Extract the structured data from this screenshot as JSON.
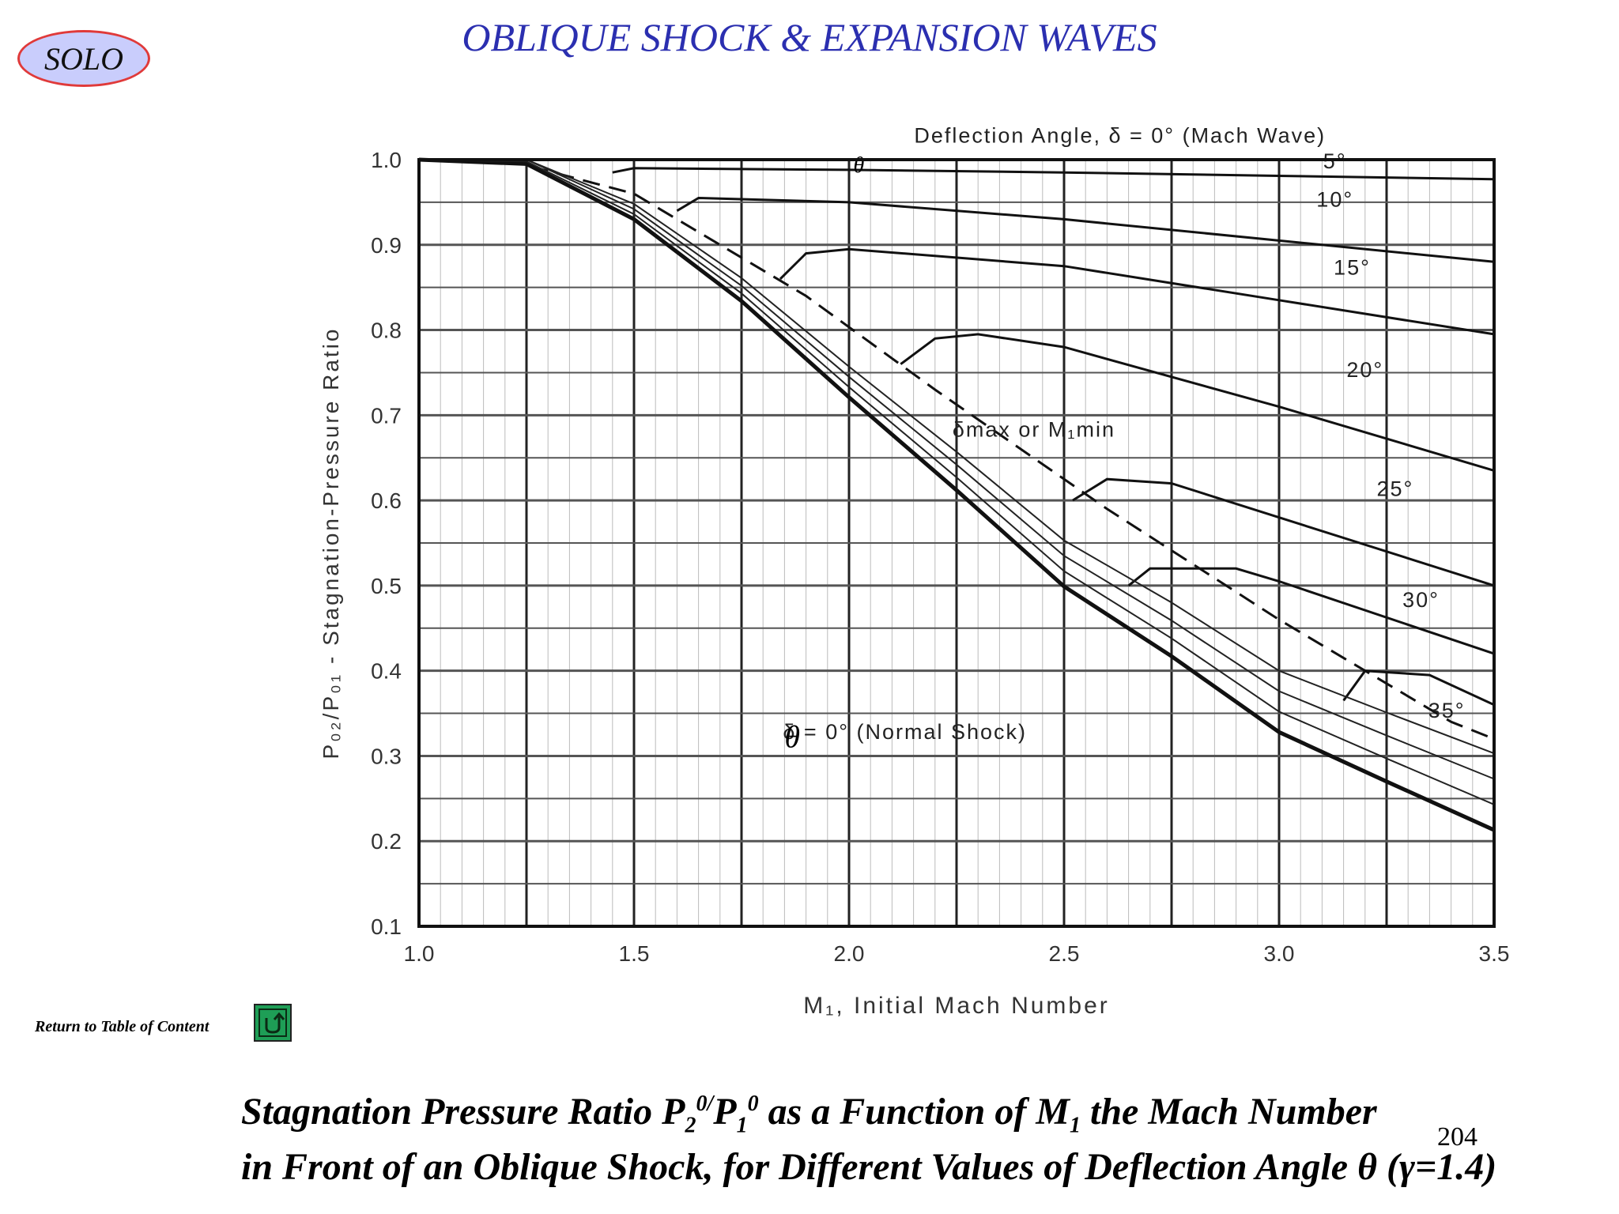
{
  "slide": {
    "badge": "SOLO",
    "title": "OBLIQUE SHOCK & EXPANSION WAVES",
    "toc_link": "Return to Table of Content",
    "return_icon": "return-arrow-icon",
    "page_number": "204",
    "caption": {
      "line1": {
        "p1": "Stagnation Pressure Ratio P",
        "sub1": "2",
        "sup1": "0/",
        "p2": "P",
        "sub2": "1",
        "sup2": "0",
        "p3": " as a Function of M",
        "sub3": "1",
        "p4": " the Mach Number"
      },
      "line2": "in Front of an Oblique Shock, for Different Values of Deflection Angle θ (γ=1.4)"
    }
  },
  "chart_data": {
    "type": "line",
    "xlabel": "M₁, Initial Mach Number",
    "ylabel": "P₀₂/P₀₁ - Stagnation-Pressure Ratio",
    "xlim": [
      1.0,
      3.5
    ],
    "ylim": [
      0.1,
      1.0
    ],
    "xticks": [
      "1.0",
      "1.5",
      "2.0",
      "2.5",
      "3.0",
      "3.5"
    ],
    "yticks": [
      "0.1",
      "0.2",
      "0.3",
      "0.4",
      "0.5",
      "0.6",
      "0.7",
      "0.8",
      "0.9",
      "1.0"
    ],
    "grid": true,
    "theta_marks": [
      "θ",
      "θ"
    ],
    "series": [
      {
        "name": "δ = 0° (Mach Wave)",
        "label": "Deflection Angle, δ = 0° (Mach Wave)",
        "x": [
          1.0,
          3.5
        ],
        "y": [
          1.0,
          1.0
        ]
      },
      {
        "name": "5°",
        "label": "5°",
        "x": [
          1.45,
          1.5,
          2.0,
          2.5,
          3.0,
          3.5
        ],
        "y": [
          0.985,
          0.99,
          0.988,
          0.985,
          0.981,
          0.977
        ]
      },
      {
        "name": "10°",
        "label": "10°",
        "x": [
          1.6,
          1.65,
          2.0,
          2.5,
          3.0,
          3.5
        ],
        "y": [
          0.94,
          0.955,
          0.95,
          0.93,
          0.905,
          0.88
        ]
      },
      {
        "name": "15°",
        "label": "15°",
        "x": [
          1.84,
          1.9,
          2.0,
          2.5,
          3.0,
          3.5
        ],
        "y": [
          0.86,
          0.89,
          0.895,
          0.875,
          0.835,
          0.795
        ]
      },
      {
        "name": "20°",
        "label": "20°",
        "x": [
          2.12,
          2.2,
          2.3,
          2.5,
          3.0,
          3.5
        ],
        "y": [
          0.76,
          0.79,
          0.795,
          0.78,
          0.71,
          0.635
        ]
      },
      {
        "name": "25°",
        "label": "25°",
        "x": [
          2.52,
          2.6,
          2.75,
          3.0,
          3.5
        ],
        "y": [
          0.6,
          0.625,
          0.62,
          0.58,
          0.5
        ]
      },
      {
        "name": "30°",
        "label": "30°",
        "x": [
          2.65,
          2.7,
          2.9,
          3.0,
          3.5
        ],
        "y": [
          0.5,
          0.52,
          0.52,
          0.505,
          0.42
        ]
      },
      {
        "name": "35°",
        "label": "35°",
        "x": [
          3.15,
          3.2,
          3.35,
          3.5
        ],
        "y": [
          0.365,
          0.4,
          0.395,
          0.36
        ]
      },
      {
        "name": "δ = 0° (Normal Shock)",
        "label": "δ = 0° (Normal Shock)",
        "x": [
          1.0,
          1.25,
          1.5,
          1.75,
          2.0,
          2.25,
          2.5,
          2.75,
          3.0,
          3.25,
          3.5
        ],
        "y": [
          1.0,
          0.995,
          0.93,
          0.834,
          0.721,
          0.612,
          0.499,
          0.417,
          0.328,
          0.27,
          0.213
        ]
      },
      {
        "name": "δmax or M₁min",
        "label": "δmax or M₁min",
        "x": [
          1.2,
          1.5,
          1.9,
          2.2,
          2.6,
          3.0,
          3.4,
          3.5
        ],
        "y": [
          1.0,
          0.96,
          0.84,
          0.73,
          0.59,
          0.46,
          0.34,
          0.32
        ]
      }
    ]
  }
}
